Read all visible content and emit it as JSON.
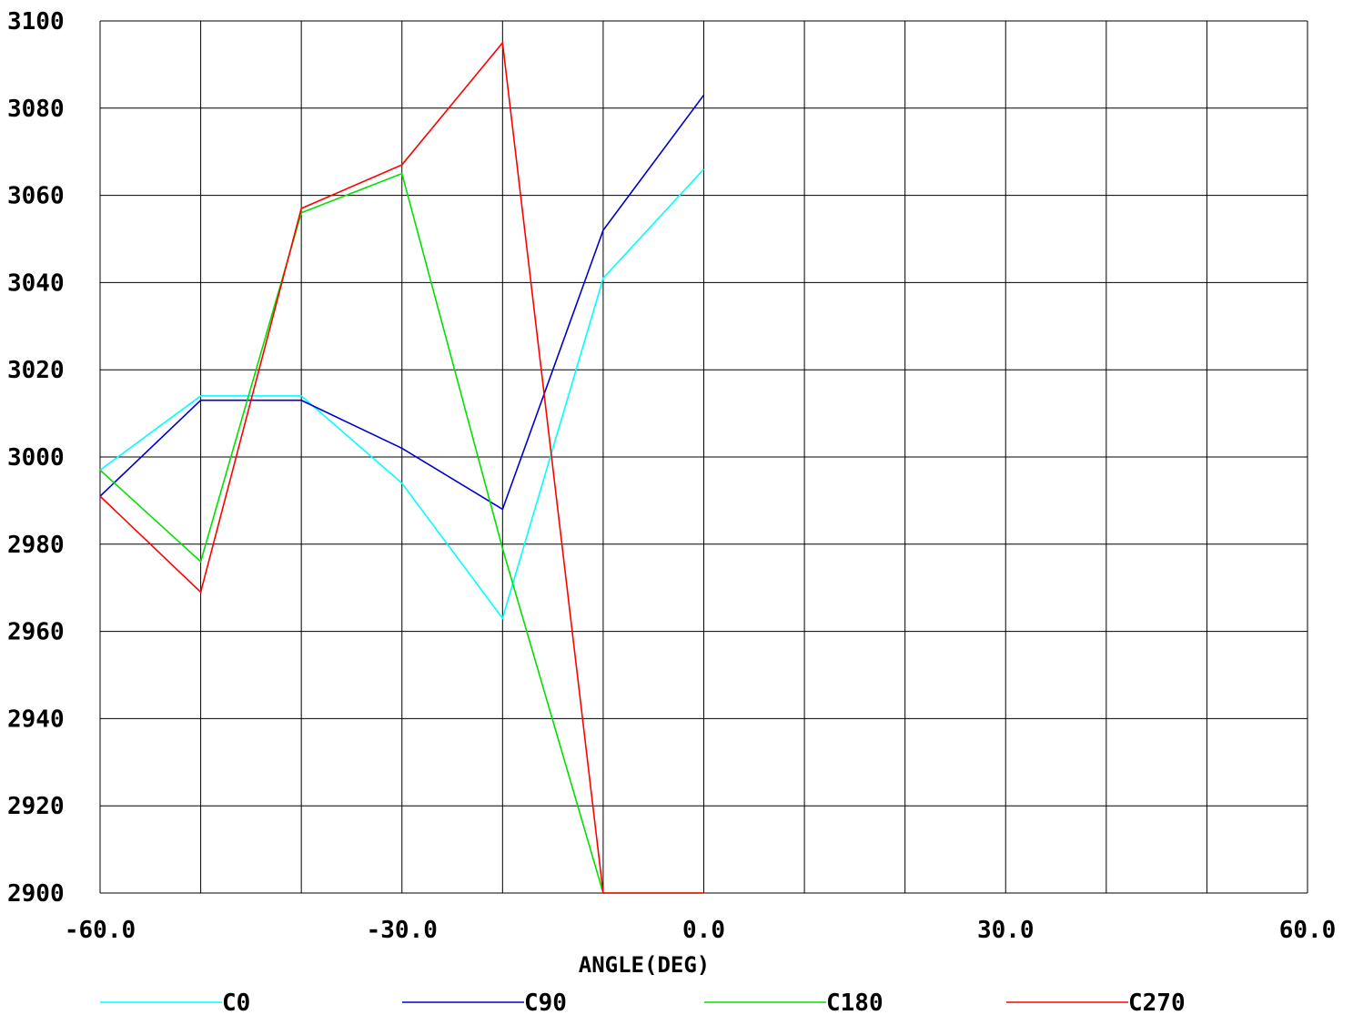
{
  "chart_data": {
    "type": "line",
    "xlabel": "ANGLE(DEG)",
    "ylabel": "",
    "xlim": [
      -60,
      60
    ],
    "ylim": [
      2900,
      3100
    ],
    "x_gridlines": [
      -60,
      -50,
      -40,
      -30,
      -20,
      -10,
      0,
      10,
      20,
      30,
      40,
      50,
      60
    ],
    "x_ticks": [
      -60,
      -30,
      0,
      30,
      60
    ],
    "x_tick_labels": [
      "-60.0",
      "-30.0",
      "0.0",
      "30.0",
      "60.0"
    ],
    "y_ticks": [
      2900,
      2920,
      2940,
      2960,
      2980,
      3000,
      3020,
      3040,
      3060,
      3080,
      3100
    ],
    "y_tick_labels": [
      "2900",
      "2920",
      "2940",
      "2960",
      "2980",
      "3000",
      "3020",
      "3040",
      "3060",
      "3080",
      "3100"
    ],
    "grid": true,
    "legend_position": "bottom",
    "x": [
      -60,
      -50,
      -40,
      -30,
      -20,
      -10,
      0
    ],
    "series": [
      {
        "name": "C0",
        "color": "#00ffff",
        "values": [
          2997,
          3014,
          3014,
          2994,
          2963,
          3041,
          3066
        ]
      },
      {
        "name": "C90",
        "color": "#0000cc",
        "values": [
          2991,
          3013,
          3013,
          3002,
          2988,
          3052,
          3083
        ]
      },
      {
        "name": "C180",
        "color": "#00e000",
        "values": [
          2997,
          2976,
          3056,
          3065,
          2979,
          2900,
          2900
        ]
      },
      {
        "name": "C270",
        "color": "#ff0000",
        "values": [
          2991,
          2969,
          3057,
          3067,
          3095,
          2900,
          2900
        ]
      }
    ]
  }
}
